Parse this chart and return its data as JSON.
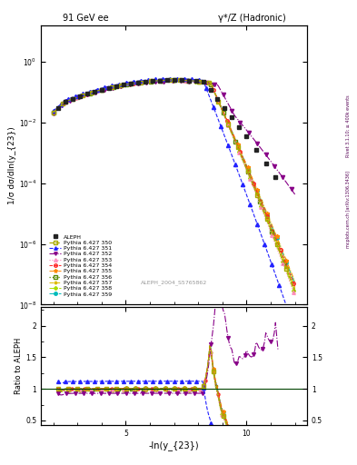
{
  "title_left": "91 GeV ee",
  "title_right": "γ*/Z (Hadronic)",
  "ylabel_main": "1/σ dσ/dln(y_{23})",
  "ylabel_ratio": "Ratio to ALEPH",
  "xlabel": "-ln(y_{23})",
  "watermark": "ALEPH_2004_S5765862",
  "side_text_top": "Rivet 3.1.10; ≥ 400k events",
  "side_text_bot": "mcplots.cern.ch [arXiv:1306.3436]",
  "main_ylim_log": [
    -8,
    1.2
  ],
  "ratio_ylim": [
    0.42,
    2.3
  ],
  "xlim": [
    1.5,
    12.5
  ],
  "colors": {
    "aleph": "#222222",
    "p350": "#aaaa00",
    "p351": "#2222ff",
    "p352": "#880088",
    "p353": "#ff88bb",
    "p354": "#ff2222",
    "p355": "#ff8800",
    "p356": "#558800",
    "p357": "#ddbb00",
    "p358": "#aadd00",
    "p359": "#00bbbb"
  },
  "legend_entries": [
    "ALEPH",
    "Pythia 6.427 350",
    "Pythia 6.427 351",
    "Pythia 6.427 352",
    "Pythia 6.427 353",
    "Pythia 6.427 354",
    "Pythia 6.427 355",
    "Pythia 6.427 356",
    "Pythia 6.427 357",
    "Pythia 6.427 358",
    "Pythia 6.427 359"
  ]
}
